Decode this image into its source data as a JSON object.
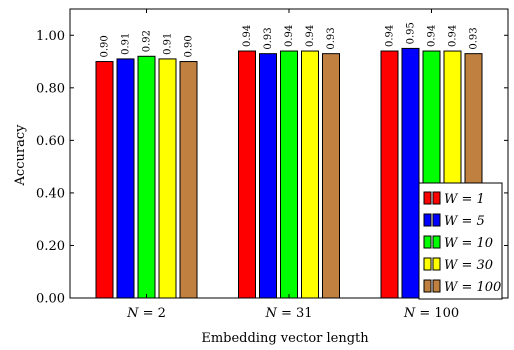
{
  "chart_data": {
    "type": "bar",
    "xlabel": "Embedding vector length",
    "ylabel": "Accuracy",
    "ylim": [
      0,
      1.1
    ],
    "yticks": [
      0.0,
      0.2,
      0.4,
      0.6,
      0.8,
      1.0
    ],
    "ytick_labels": [
      "0.00",
      "0.20",
      "0.40",
      "0.60",
      "0.80",
      "1.00"
    ],
    "categories": [
      "N = 2",
      "N = 31",
      "N = 100"
    ],
    "grid": false,
    "legend_position": "bottom-right",
    "series": [
      {
        "name": "W = 1",
        "color": "#ff0000",
        "values": [
          0.9,
          0.94,
          0.94
        ],
        "labels": [
          "0.90",
          "0.94",
          "0.94"
        ]
      },
      {
        "name": "W = 5",
        "color": "#0000ff",
        "values": [
          0.91,
          0.93,
          0.95
        ],
        "labels": [
          "0.91",
          "0.93",
          "0.95"
        ]
      },
      {
        "name": "W = 10",
        "color": "#00ff00",
        "values": [
          0.92,
          0.94,
          0.94
        ],
        "labels": [
          "0.92",
          "0.94",
          "0.94"
        ]
      },
      {
        "name": "W = 30",
        "color": "#ffff00",
        "values": [
          0.91,
          0.94,
          0.94
        ],
        "labels": [
          "0.91",
          "0.94",
          "0.94"
        ]
      },
      {
        "name": "W = 100",
        "color": "#bf8040",
        "values": [
          0.9,
          0.93,
          0.93
        ],
        "labels": [
          "0.90",
          "0.93",
          "0.93"
        ]
      }
    ]
  }
}
